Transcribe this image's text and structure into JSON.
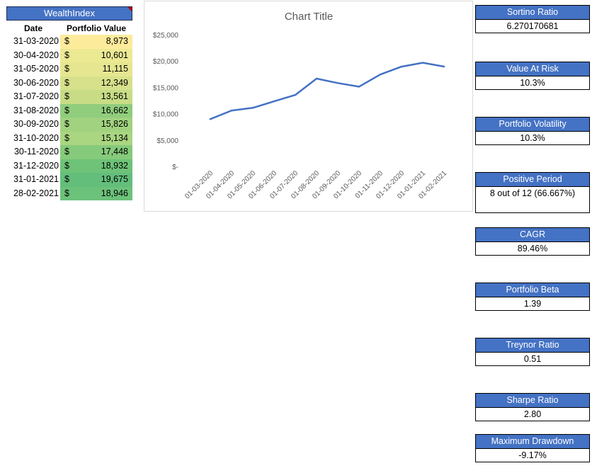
{
  "wealth_index": {
    "title": "WealthIndex",
    "col_date": "Date",
    "col_value": "Portfolio Value",
    "currency_symbol": "$",
    "rows": [
      {
        "date": "31-03-2020",
        "value": "8,973",
        "color": "#fdeb9c"
      },
      {
        "date": "30-04-2020",
        "value": "10,601",
        "color": "#ece993"
      },
      {
        "date": "31-05-2020",
        "value": "11,115",
        "color": "#e6e691"
      },
      {
        "date": "30-06-2020",
        "value": "12,349",
        "color": "#d7e18b"
      },
      {
        "date": "31-07-2020",
        "value": "13,561",
        "color": "#c8dc86"
      },
      {
        "date": "31-08-2020",
        "value": "16,662",
        "color": "#90cd7d"
      },
      {
        "date": "30-09-2020",
        "value": "15,826",
        "color": "#a1d27f"
      },
      {
        "date": "31-10-2020",
        "value": "15,134",
        "color": "#aad581"
      },
      {
        "date": "30-11-2020",
        "value": "17,448",
        "color": "#86ca7b"
      },
      {
        "date": "31-12-2020",
        "value": "18,932",
        "color": "#6ec378"
      },
      {
        "date": "31-01-2021",
        "value": "19,675",
        "color": "#63be7b"
      },
      {
        "date": "28-02-2021",
        "value": "18,946",
        "color": "#6cc27a"
      }
    ]
  },
  "chart_data": {
    "type": "line",
    "title": "Chart Title",
    "x": [
      "01-03-2020",
      "01-04-2020",
      "01-05-2020",
      "01-06-2020",
      "01-07-2020",
      "01-08-2020",
      "01-09-2020",
      "01-10-2020",
      "01-11-2020",
      "01-12-2020",
      "01-01-2021",
      "01-02-2021"
    ],
    "series": [
      {
        "values": [
          8973,
          10601,
          11115,
          12349,
          13561,
          16662,
          15826,
          15134,
          17448,
          18932,
          19675,
          18946
        ],
        "color": "#4472c4"
      }
    ],
    "ylim": [
      0,
      25000
    ],
    "yticks": [
      {
        "v": 25000,
        "label": "$25,000"
      },
      {
        "v": 20000,
        "label": "$20,000"
      },
      {
        "v": 15000,
        "label": "$15,000"
      },
      {
        "v": 10000,
        "label": "$10,000"
      },
      {
        "v": 5000,
        "label": "$5,000"
      },
      {
        "v": 0,
        "label": "$-"
      }
    ],
    "grid": false,
    "xlabel": "",
    "ylabel": ""
  },
  "metrics": {
    "sortino": {
      "label": "Sortino Ratio",
      "value": "6.270170681"
    },
    "var": {
      "label": "Value At Risk",
      "value": "10.3%"
    },
    "volatility": {
      "label": "Portfolio Volatility",
      "value": "10.3%"
    },
    "positive": {
      "label": "Positive Period",
      "value": "8 out of 12 (66.667%)"
    },
    "cagr": {
      "label": "CAGR",
      "value": "89.46%"
    },
    "beta": {
      "label": "Portfolio Beta",
      "value": "1.39"
    },
    "treynor": {
      "label": "Treynor Ratio",
      "value": "0.51"
    },
    "sharpe": {
      "label": "Sharpe Ratio",
      "value": "2.80"
    },
    "drawdown": {
      "label": "Maximum Drawdown",
      "value": "-9.17%"
    }
  }
}
